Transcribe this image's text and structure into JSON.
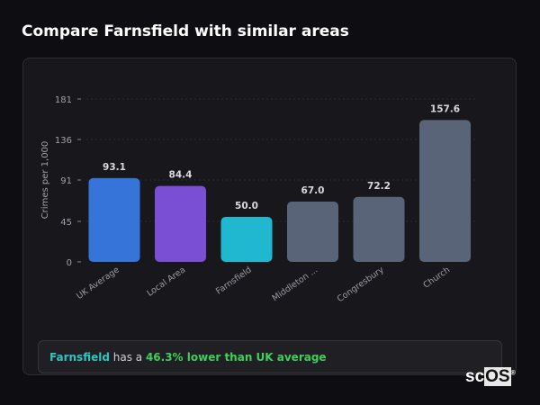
{
  "title": "Compare Farnsfield with similar areas",
  "chart_data": {
    "type": "bar",
    "categories": [
      "UK Average",
      "Local Area",
      "Farnsfield",
      "Middleton ...",
      "Congresbury",
      "Church"
    ],
    "values": [
      93.1,
      84.4,
      50.0,
      67.0,
      72.2,
      157.6
    ],
    "colors": [
      "#3674d9",
      "#7a4fd4",
      "#1fb8d0",
      "#5a6478",
      "#5a6478",
      "#5a6478"
    ],
    "ylabel": "Crimes per 1,000",
    "yticks": [
      0,
      45,
      91,
      136,
      181
    ],
    "ylim": [
      0,
      181
    ],
    "grid": true
  },
  "footer": {
    "place": "Farnsfield",
    "text": " has a ",
    "highlight": "46.3% lower than UK average"
  },
  "logo": {
    "text1": "sc",
    "text2": "OS",
    "mark": "®"
  }
}
